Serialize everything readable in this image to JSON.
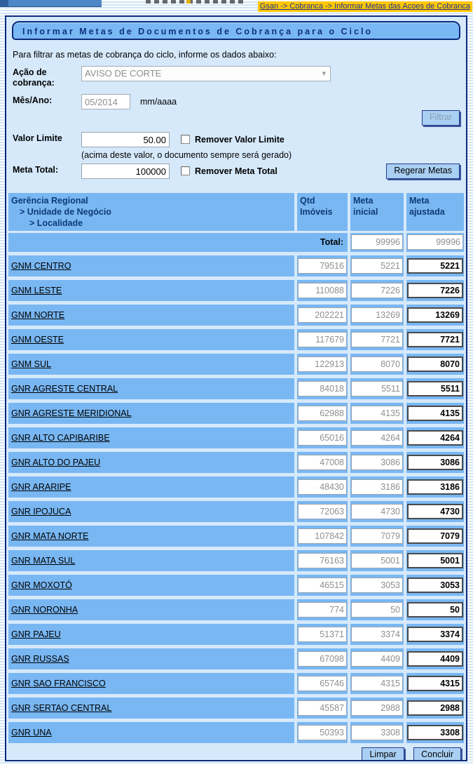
{
  "breadcrumb": "Gsan -> Cobranca -> Informar Metas das Acoes de Cobranca",
  "title": "Informar Metas de Documentos de Cobrança para o Ciclo",
  "intro": "Para filtrar as metas de cobrança do ciclo, informe os dados abaixo:",
  "form": {
    "acao_label": "Ação de cobrança:",
    "acao_value": "AVISO DE CORTE",
    "acao_arrow_icon": "▾",
    "mes_ano_label": "Mês/Ano:",
    "mes_ano_value": "05/2014",
    "mes_ano_mask": "mm/aaaa",
    "filtrar_label": "Filtrar",
    "valor_limite_label": "Valor Limite",
    "valor_limite_value": "50.00",
    "remover_valor_label": "Remover Valor Limite",
    "valor_hint": "(acima deste valor, o documento sempre será gerado)",
    "meta_total_label": "Meta Total:",
    "meta_total_value": "100000",
    "remover_meta_label": "Remover Meta Total",
    "regerar_label": "Regerar Metas"
  },
  "table": {
    "header": {
      "col1_lines": [
        "Gerência Regional",
        "> Unidade de Negócio",
        "> Localidade"
      ],
      "col2_lines": [
        "Qtd",
        "Imóveis"
      ],
      "col3_lines": [
        "Meta",
        "inicial"
      ],
      "col4_lines": [
        "Meta",
        "ajustada"
      ]
    },
    "total_label": "Total:",
    "total_meta_inicial": "99996",
    "total_meta_ajustada": "99996",
    "rows": [
      {
        "name": "GNM CENTRO",
        "qtd": "79516",
        "meta_inicial": "5221",
        "meta_ajustada": "5221"
      },
      {
        "name": "GNM LESTE",
        "qtd": "110088",
        "meta_inicial": "7226",
        "meta_ajustada": "7226"
      },
      {
        "name": "GNM NORTE",
        "qtd": "202221",
        "meta_inicial": "13269",
        "meta_ajustada": "13269"
      },
      {
        "name": "GNM OESTE",
        "qtd": "117679",
        "meta_inicial": "7721",
        "meta_ajustada": "7721"
      },
      {
        "name": "GNM SUL",
        "qtd": "122913",
        "meta_inicial": "8070",
        "meta_ajustada": "8070"
      },
      {
        "name": "GNR AGRESTE CENTRAL",
        "qtd": "84018",
        "meta_inicial": "5511",
        "meta_ajustada": "5511"
      },
      {
        "name": "GNR AGRESTE MERIDIONAL",
        "qtd": "62988",
        "meta_inicial": "4135",
        "meta_ajustada": "4135"
      },
      {
        "name": "GNR ALTO CAPIBARIBE",
        "qtd": "65016",
        "meta_inicial": "4264",
        "meta_ajustada": "4264"
      },
      {
        "name": "GNR ALTO DO PAJEU",
        "qtd": "47008",
        "meta_inicial": "3086",
        "meta_ajustada": "3086"
      },
      {
        "name": "GNR ARARIPE",
        "qtd": "48430",
        "meta_inicial": "3186",
        "meta_ajustada": "3186"
      },
      {
        "name": "GNR IPOJUCA",
        "qtd": "72063",
        "meta_inicial": "4730",
        "meta_ajustada": "4730"
      },
      {
        "name": "GNR MATA NORTE",
        "qtd": "107842",
        "meta_inicial": "7079",
        "meta_ajustada": "7079"
      },
      {
        "name": "GNR MATA SUL",
        "qtd": "76163",
        "meta_inicial": "5001",
        "meta_ajustada": "5001"
      },
      {
        "name": "GNR MOXOTÓ",
        "qtd": "46515",
        "meta_inicial": "3053",
        "meta_ajustada": "3053"
      },
      {
        "name": "GNR NORONHA",
        "qtd": "774",
        "meta_inicial": "50",
        "meta_ajustada": "50"
      },
      {
        "name": "GNR PAJEU",
        "qtd": "51371",
        "meta_inicial": "3374",
        "meta_ajustada": "3374"
      },
      {
        "name": "GNR RUSSAS",
        "qtd": "67098",
        "meta_inicial": "4409",
        "meta_ajustada": "4409"
      },
      {
        "name": "GNR SAO FRANCISCO",
        "qtd": "65746",
        "meta_inicial": "4315",
        "meta_ajustada": "4315"
      },
      {
        "name": "GNR SERTAO CENTRAL",
        "qtd": "45587",
        "meta_inicial": "2988",
        "meta_ajustada": "2988"
      },
      {
        "name": "GNR UNA",
        "qtd": "50393",
        "meta_inicial": "3308",
        "meta_ajustada": "3308"
      }
    ]
  },
  "footer": {
    "limpar_label": "Limpar",
    "concluir_label": "Concluir"
  },
  "colors": {
    "band_blue": "#79B7F3",
    "panel_bg": "#D6E9FB",
    "border_navy": "#0B2A7A",
    "breadcrumb_bg": "#FFC800",
    "button_bg": "#A9CFF2"
  }
}
